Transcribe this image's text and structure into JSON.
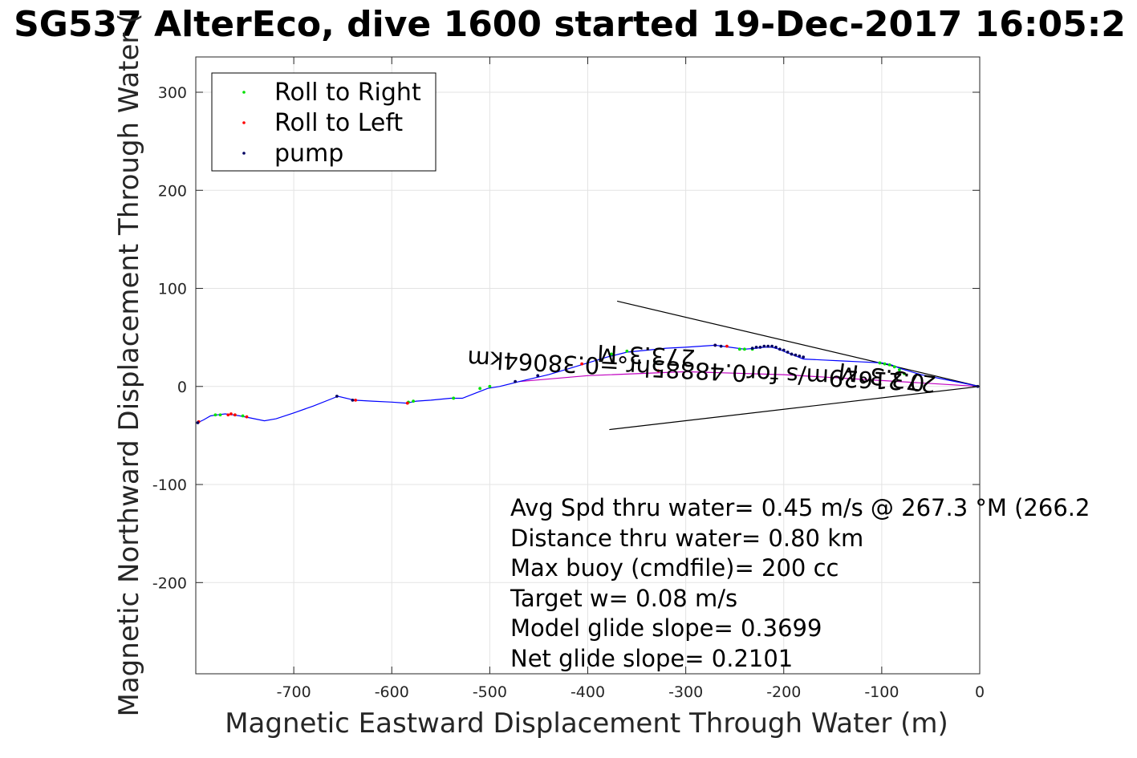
{
  "chart_data": {
    "type": "scatter",
    "title": "SG537 AlterEco, dive 1600 started 19-Dec-2017 16:05:2",
    "xlabel": "Magnetic Eastward Displacement Through Water (m)",
    "ylabel": "Magnetic Northward Displacement Through Water (",
    "xlim": [
      -800,
      0
    ],
    "ylim": [
      -293,
      336
    ],
    "xticks": [
      -700,
      -600,
      -500,
      -400,
      -300,
      -200,
      -100,
      0
    ],
    "xtick_labels": [
      "-700",
      "-600",
      "-500",
      "-400",
      "-300",
      "-200",
      "-100",
      "0"
    ],
    "yticks": [
      -200,
      -100,
      0,
      100,
      200,
      300
    ],
    "ytick_labels": [
      "-200",
      "-100",
      "0",
      "100",
      "200",
      "300"
    ],
    "grid": true,
    "legend_position": "top-left",
    "legend": [
      "Roll to Right",
      "Roll to Left",
      "pump"
    ],
    "colors": {
      "track": "#0000ff",
      "surface_track": "#c000c0",
      "roll_right": "#00e000",
      "roll_left": "#ff0000",
      "pump": "#000060",
      "grid": "#e3e3e3",
      "axes": "#262626",
      "cone": "#000000"
    },
    "track": [
      [
        -798,
        -37
      ],
      [
        -792,
        -34
      ],
      [
        -785,
        -30
      ],
      [
        -778,
        -29
      ],
      [
        -770,
        -28
      ],
      [
        -762,
        -29
      ],
      [
        -755,
        -30
      ],
      [
        -745,
        -32
      ],
      [
        -730,
        -35
      ],
      [
        -718,
        -33
      ],
      [
        -700,
        -27
      ],
      [
        -680,
        -20
      ],
      [
        -660,
        -12
      ],
      [
        -655,
        -10
      ],
      [
        -638,
        -14
      ],
      [
        -620,
        -15
      ],
      [
        -600,
        -16
      ],
      [
        -585,
        -17
      ],
      [
        -575,
        -15
      ],
      [
        -560,
        -14
      ],
      [
        -540,
        -12
      ],
      [
        -528,
        -12
      ],
      [
        -515,
        -7
      ],
      [
        -502,
        -2
      ],
      [
        -490,
        0
      ],
      [
        -470,
        5
      ],
      [
        -440,
        12
      ],
      [
        -420,
        18
      ],
      [
        -400,
        24
      ],
      [
        -380,
        30
      ],
      [
        -360,
        35
      ],
      [
        -340,
        37
      ],
      [
        -320,
        39
      ],
      [
        -300,
        40
      ],
      [
        -270,
        42
      ],
      [
        -255,
        40
      ],
      [
        -240,
        38
      ],
      [
        -228,
        39
      ],
      [
        -220,
        40
      ],
      [
        -212,
        40
      ],
      [
        -205,
        38
      ],
      [
        -198,
        35
      ],
      [
        -190,
        32
      ],
      [
        -180,
        28
      ],
      [
        -160,
        27
      ],
      [
        -140,
        26
      ],
      [
        -120,
        25
      ],
      [
        -100,
        24
      ],
      [
        -90,
        22
      ],
      [
        -80,
        18
      ],
      [
        -70,
        15
      ],
      [
        -60,
        12
      ],
      [
        -40,
        8
      ],
      [
        -20,
        4
      ],
      [
        0,
        0
      ]
    ],
    "surface_track": [
      [
        -470,
        5
      ],
      [
        -400,
        11
      ],
      [
        -300,
        15
      ],
      [
        -200,
        12
      ],
      [
        -100,
        6
      ],
      [
        0,
        0
      ]
    ],
    "roll_right": [
      [
        -780,
        -29
      ],
      [
        -775,
        -29
      ],
      [
        -760,
        -29
      ],
      [
        -752,
        -30
      ],
      [
        -583,
        -16
      ],
      [
        -578,
        -15
      ],
      [
        -537,
        -12
      ],
      [
        -510,
        -2
      ],
      [
        -500,
        0
      ],
      [
        -376,
        33
      ],
      [
        -360,
        36
      ],
      [
        -245,
        38
      ],
      [
        -240,
        38
      ],
      [
        -232,
        38
      ],
      [
        -102,
        24
      ],
      [
        -97,
        23
      ],
      [
        -92,
        22
      ],
      [
        -87,
        20
      ],
      [
        -82,
        17
      ],
      [
        -77,
        13
      ]
    ],
    "roll_left": [
      [
        -797,
        -36
      ],
      [
        -767,
        -29
      ],
      [
        -764,
        -28
      ],
      [
        -760,
        -29
      ],
      [
        -748,
        -31
      ],
      [
        -637,
        -14
      ],
      [
        -584,
        -17
      ],
      [
        -406,
        23
      ],
      [
        -328,
        16
      ],
      [
        -270,
        42
      ],
      [
        -258,
        41
      ]
    ],
    "pump": [
      [
        -798,
        -37
      ],
      [
        -656,
        -10
      ],
      [
        -640,
        -14
      ],
      [
        -474,
        5
      ],
      [
        -451,
        11
      ],
      [
        -270,
        42
      ],
      [
        -264,
        41
      ],
      [
        -232,
        39
      ],
      [
        -228,
        40
      ],
      [
        -224,
        40
      ],
      [
        -220,
        41
      ],
      [
        -216,
        41
      ],
      [
        -212,
        41
      ],
      [
        -208,
        40
      ],
      [
        -204,
        38
      ],
      [
        -200,
        37
      ],
      [
        -196,
        35
      ],
      [
        -192,
        33
      ],
      [
        -188,
        32
      ],
      [
        -184,
        31
      ],
      [
        -180,
        30
      ],
      [
        -2,
        0
      ]
    ],
    "cone_lines": [
      [
        [
          -370,
          87
        ],
        [
          0,
          0
        ]
      ],
      [
        [
          -378,
          -44
        ],
        [
          0,
          0
        ]
      ]
    ],
    "vector_labels": [
      "0.21629m/s for0.48885hr =0.38064km",
      "273.3°M",
      "273.3°M"
    ],
    "annotations": [
      "Avg Spd thru water=  0.45 m/s @ 267.3 °M (266.2",
      "Distance thru water=  0.80 km",
      "Max buoy (cmdfile)= 200 cc",
      "Target w= 0.08 m/s",
      "Model glide slope= 0.3699",
      "Net glide slope= 0.2101"
    ]
  }
}
